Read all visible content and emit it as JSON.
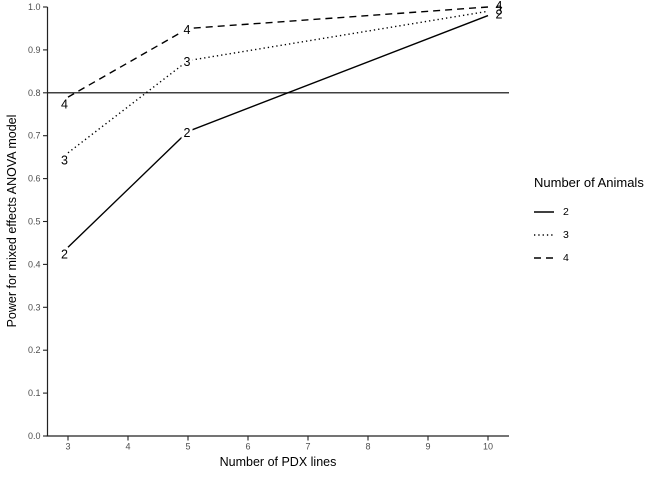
{
  "figure": {
    "background": "#ffffff",
    "line_color": "#000000",
    "axis_color": "#222222",
    "axis_text_color": "#4d4d4d"
  },
  "chart_data": {
    "type": "line",
    "title": "",
    "xlabel": "Number of PDX lines",
    "ylabel": "Power for mixed effects ANOVA model",
    "x": [
      3,
      5,
      10
    ],
    "series": [
      {
        "name": "2",
        "linetype": "solid",
        "values": [
          0.44,
          0.71,
          0.98
        ]
      },
      {
        "name": "3",
        "linetype": "dotted",
        "values": [
          0.66,
          0.875,
          0.99
        ]
      },
      {
        "name": "4",
        "linetype": "dashed",
        "values": [
          0.79,
          0.95,
          1.0
        ]
      }
    ],
    "point_labels": true,
    "reference_line_y": 0.8,
    "xticks": [
      3,
      4,
      5,
      6,
      7,
      8,
      9,
      10
    ],
    "ytick_labels": [
      "0.0",
      "0.1",
      "0.2",
      "0.3",
      "0.4",
      "0.5",
      "0.6",
      "0.7",
      "0.8",
      "0.9",
      "1.0"
    ],
    "xlim": [
      2.65,
      10.35
    ],
    "ylim": [
      0.0,
      1.0
    ],
    "grid": "off",
    "legend_position": "right"
  },
  "legend": {
    "title": "Number of Animals",
    "items": [
      {
        "label": "2",
        "linetype": "solid"
      },
      {
        "label": "3",
        "linetype": "dotted"
      },
      {
        "label": "4",
        "linetype": "dashed"
      }
    ]
  }
}
